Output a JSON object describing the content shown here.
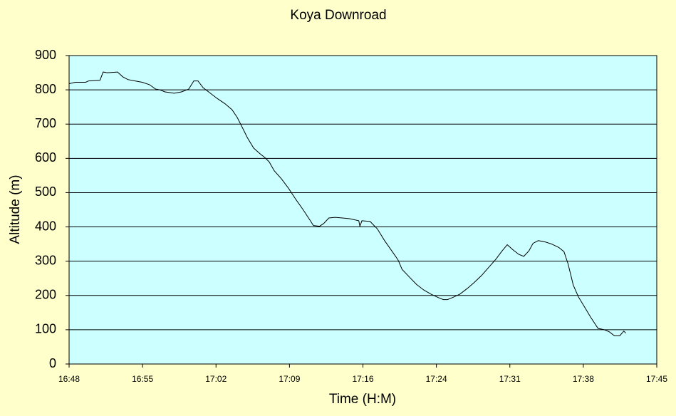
{
  "chart_data": {
    "type": "line",
    "title": "Koya Downroad",
    "x_label": "Time (H:M)",
    "y_label": "Altitude (m)",
    "x": [
      1008.0,
      1008.6,
      1009.6,
      1009.9,
      1011.0,
      1011.3,
      1011.7,
      1012.7,
      1013.2,
      1013.7,
      1014.4,
      1015.1,
      1015.8,
      1016.4,
      1016.8,
      1017.3,
      1018.2,
      1018.9,
      1019.6,
      1020.1,
      1020.5,
      1021.0,
      1021.7,
      1022.4,
      1023.1,
      1023.8,
      1024.3,
      1024.8,
      1025.3,
      1025.9,
      1026.5,
      1027.0,
      1027.4,
      1027.9,
      1028.6,
      1029.3,
      1030.0,
      1030.7,
      1031.4,
      1031.7,
      1032.3,
      1032.7,
      1033.2,
      1033.8,
      1034.5,
      1035.2,
      1036.1,
      1036.2,
      1036.4,
      1037.2,
      1037.9,
      1038.6,
      1039.3,
      1039.9,
      1040.3,
      1041.0,
      1041.7,
      1042.4,
      1043.1,
      1043.8,
      1044.3,
      1044.7,
      1045.2,
      1045.9,
      1046.6,
      1047.3,
      1048.0,
      1048.7,
      1049.4,
      1050.0,
      1050.5,
      1051.1,
      1051.6,
      1052.1,
      1052.6,
      1053.0,
      1053.5,
      1054.2,
      1054.8,
      1055.5,
      1056.0,
      1056.4,
      1056.9,
      1057.4,
      1058.0,
      1058.6,
      1059.3,
      1059.9,
      1060.4,
      1060.9,
      1061.4,
      1061.8,
      1062.0
    ],
    "series": [
      {
        "name": "Altitude",
        "color": "#000000",
        "values": [
          818,
          822,
          822,
          826,
          828,
          852,
          850,
          852,
          838,
          830,
          826,
          822,
          815,
          802,
          800,
          794,
          790,
          794,
          802,
          826,
          826,
          806,
          790,
          774,
          760,
          742,
          720,
          690,
          660,
          630,
          614,
          602,
          590,
          564,
          540,
          512,
          480,
          450,
          418,
          404,
          402,
          410,
          426,
          428,
          426,
          424,
          418,
          402,
          418,
          416,
          394,
          360,
          330,
          304,
          276,
          254,
          232,
          216,
          204,
          194,
          188,
          188,
          194,
          204,
          220,
          238,
          258,
          282,
          306,
          330,
          348,
          332,
          320,
          314,
          330,
          352,
          360,
          356,
          350,
          340,
          328,
          292,
          230,
          196,
          166,
          136,
          104,
          100,
          94,
          82,
          82,
          96,
          90
        ]
      }
    ],
    "xlim": [
      1008,
      1065
    ],
    "xticks": [
      {
        "value": 1008,
        "label": "16:48"
      },
      {
        "value": 1015.125,
        "label": "16:55"
      },
      {
        "value": 1022.25,
        "label": "17:02"
      },
      {
        "value": 1029.375,
        "label": "17:09"
      },
      {
        "value": 1036.5,
        "label": "17:16"
      },
      {
        "value": 1043.625,
        "label": "17:24"
      },
      {
        "value": 1050.75,
        "label": "17:31"
      },
      {
        "value": 1057.875,
        "label": "17:38"
      },
      {
        "value": 1065,
        "label": "17:45"
      }
    ],
    "ylim": [
      0,
      900
    ],
    "yticks": [
      0,
      100,
      200,
      300,
      400,
      500,
      600,
      700,
      800,
      900
    ],
    "grid": true,
    "plot_background": "#ccffff"
  }
}
